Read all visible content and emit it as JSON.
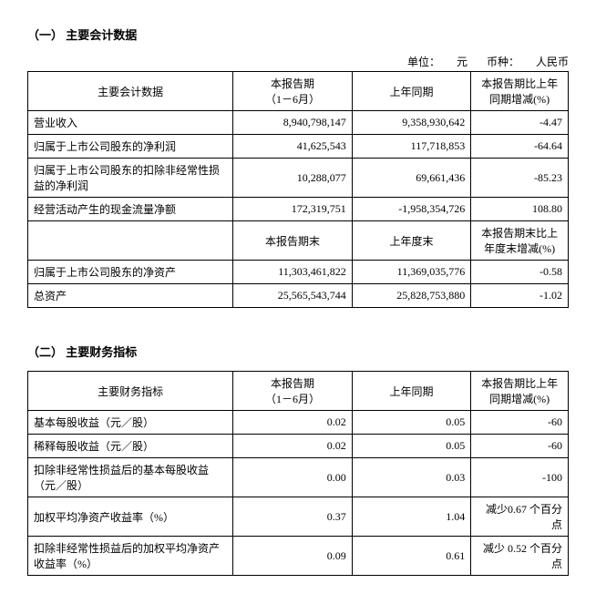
{
  "section1": {
    "title": "（一） 主要会计数据",
    "unit_prefix": "单位：",
    "unit_value": "元",
    "currency_prefix": "币种：",
    "currency_value": "人民币",
    "headers": {
      "col1": "主要会计数据",
      "col2_line1": "本报告期",
      "col2_line2": "（1－6月）",
      "col3": "上年同期",
      "col4": "本报告期比上年同期增减(%)"
    },
    "rows": [
      {
        "label": "营业收入",
        "current": "8,940,798,147",
        "prior": "9,358,930,642",
        "change": "-4.47"
      },
      {
        "label": "归属于上市公司股东的净利润",
        "current": "41,625,543",
        "prior": "117,718,853",
        "change": "-64.64"
      },
      {
        "label": "归属于上市公司股东的扣除非经常性损益的净利润",
        "current": "10,288,077",
        "prior": "69,661,436",
        "change": "-85.23"
      },
      {
        "label": "经营活动产生的现金流量净额",
        "current": "172,319,751",
        "prior": "-1,958,354,726",
        "change": "108.80"
      }
    ],
    "subheaders": {
      "col2": "本报告期末",
      "col3": "上年度末",
      "col4": "本报告期末比上年度末增减(%)"
    },
    "rows2": [
      {
        "label": "归属于上市公司股东的净资产",
        "current": "11,303,461,822",
        "prior": "11,369,035,776",
        "change": "-0.58"
      },
      {
        "label": "总资产",
        "current": "25,565,543,744",
        "prior": "25,828,753,880",
        "change": "-1.02"
      }
    ]
  },
  "section2": {
    "title": "（二） 主要财务指标",
    "headers": {
      "col1": "主要财务指标",
      "col2_line1": "本报告期",
      "col2_line2": "（1－6月）",
      "col3": "上年同期",
      "col4": "本报告期比上年同期增减(%)"
    },
    "rows": [
      {
        "label": "基本每股收益（元／股）",
        "current": "0.02",
        "prior": "0.05",
        "change": "-60"
      },
      {
        "label": "稀释每股收益（元／股）",
        "current": "0.02",
        "prior": "0.05",
        "change": "-60"
      },
      {
        "label": "扣除非经常性损益后的基本每股收益（元／股）",
        "current": "0.00",
        "prior": "0.03",
        "change": "-100"
      },
      {
        "label": "加权平均净资产收益率（%）",
        "current": "0.37",
        "prior": "1.04",
        "change": "减少0.67 个百分点"
      },
      {
        "label": "扣除非经常性损益后的加权平均净资产收益率（%）",
        "current": "0.09",
        "prior": "0.61",
        "change": "减少 0.52 个百分点"
      }
    ]
  },
  "column_widths": {
    "c1": "38%",
    "c2": "22%",
    "c3": "22%",
    "c4": "18%"
  }
}
